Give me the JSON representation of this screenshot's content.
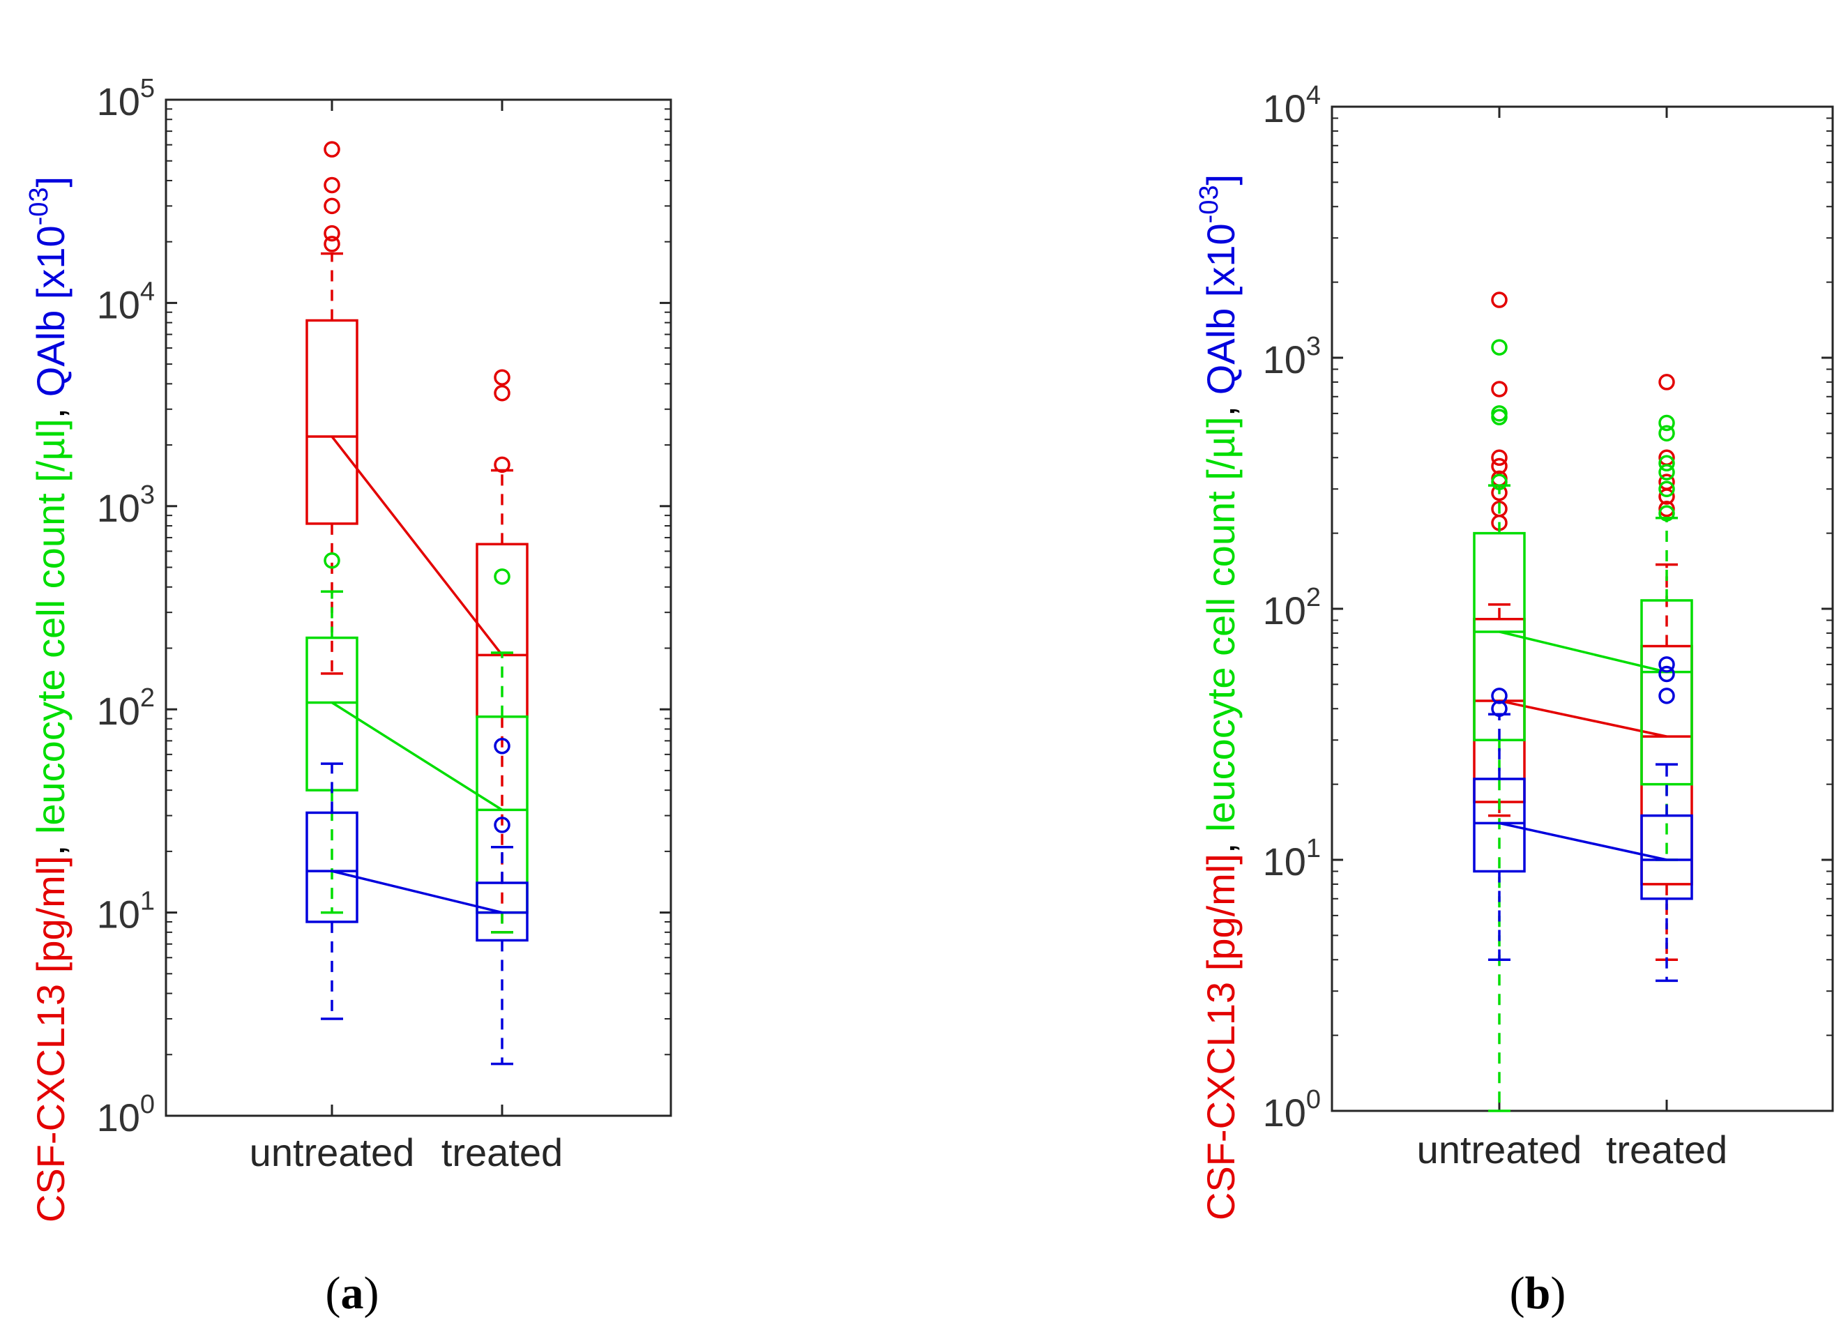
{
  "colors": {
    "cxcl13": "#e30000",
    "leucocyte": "#00dd00",
    "qalb": "#0000dd",
    "axis": "#262626"
  },
  "chart_data": [
    {
      "panel": "a",
      "type": "box",
      "yscale": "log",
      "ylim": [
        1,
        100000
      ],
      "yticks": [
        {
          "value": 1,
          "base": "10",
          "exp": "0"
        },
        {
          "value": 10,
          "base": "10",
          "exp": "1"
        },
        {
          "value": 100,
          "base": "10",
          "exp": "2"
        },
        {
          "value": 1000,
          "base": "10",
          "exp": "3"
        },
        {
          "value": 10000,
          "base": "10",
          "exp": "4"
        },
        {
          "value": 100000,
          "base": "10",
          "exp": "5"
        }
      ],
      "categories": [
        "untreated",
        "treated"
      ],
      "ylabel": {
        "cxcl13": "CSF-CXCL13 [pg/ml]",
        "sep1": ", ",
        "leucocyte": "leucocyte cell count [/µl]",
        "sep2": ", ",
        "qalb": "QAlb [x10",
        "qalb_exp": "-03",
        "qalb_end": "]"
      },
      "panel_label": {
        "open": "(",
        "letter": "a",
        "close": ")"
      },
      "series": [
        {
          "name": "CSF-CXCL13 [pg/ml]",
          "color_key": "cxcl13",
          "boxes": [
            {
              "q1": 820,
              "median": 2200,
              "q3": 8200,
              "whisker_low": 150,
              "whisker_high": 17500,
              "outliers": [
                19500,
                22000,
                30000,
                38000,
                57000
              ]
            },
            {
              "q1": 92,
              "median": 185,
              "q3": 650,
              "whisker_low": 8,
              "whisker_high": 1500,
              "outliers": [
                1600,
                3600,
                4300
              ]
            }
          ]
        },
        {
          "name": "leucocyte cell count [/µl]",
          "color_key": "leucocyte",
          "boxes": [
            {
              "q1": 40,
              "median": 108,
              "q3": 225,
              "whisker_low": 10,
              "whisker_high": 380,
              "outliers": [
                540
              ]
            },
            {
              "q1": 10,
              "median": 32,
              "q3": 92,
              "whisker_low": 8,
              "whisker_high": 190,
              "outliers": [
                450
              ]
            }
          ]
        },
        {
          "name": "QAlb [x10-03]",
          "color_key": "qalb",
          "boxes": [
            {
              "q1": 9,
              "median": 16,
              "q3": 31,
              "whisker_low": 3,
              "whisker_high": 54,
              "outliers": []
            },
            {
              "q1": 7.3,
              "median": 10,
              "q3": 14,
              "whisker_low": 1.8,
              "whisker_high": 21,
              "outliers": [
                27,
                66
              ]
            }
          ]
        }
      ]
    },
    {
      "panel": "b",
      "type": "box",
      "yscale": "log",
      "ylim": [
        1,
        10000
      ],
      "yticks": [
        {
          "value": 1,
          "base": "10",
          "exp": "0"
        },
        {
          "value": 10,
          "base": "10",
          "exp": "1"
        },
        {
          "value": 100,
          "base": "10",
          "exp": "2"
        },
        {
          "value": 1000,
          "base": "10",
          "exp": "3"
        },
        {
          "value": 10000,
          "base": "10",
          "exp": "4"
        }
      ],
      "categories": [
        "untreated",
        "treated"
      ],
      "ylabel": {
        "cxcl13": "CSF-CXCL13 [pg/ml]",
        "sep1": ", ",
        "leucocyte": "leucocyte cell count [/µl]",
        "sep2": ", ",
        "qalb": "QAlb [x10",
        "qalb_exp": "-03",
        "qalb_end": "]"
      },
      "panel_label": {
        "open": "(",
        "letter": "b",
        "close": ")"
      },
      "series": [
        {
          "name": "CSF-CXCL13 [pg/ml]",
          "color_key": "cxcl13",
          "boxes": [
            {
              "q1": 17,
              "median": 43,
              "q3": 91,
              "whisker_low": 15,
              "whisker_high": 104,
              "outliers": [
                220,
                250,
                290,
                330,
                370,
                400,
                750,
                1700
              ]
            },
            {
              "q1": 8,
              "median": 31,
              "q3": 71,
              "whisker_low": 4,
              "whisker_high": 150,
              "outliers": [
                250,
                280,
                320,
                400,
                800
              ]
            }
          ]
        },
        {
          "name": "leucocyte cell count [/µl]",
          "color_key": "leucocyte",
          "boxes": [
            {
              "q1": 30,
              "median": 81,
              "q3": 200,
              "whisker_low": 1,
              "whisker_high": 310,
              "outliers": [
                320,
                580,
                600,
                1100
              ]
            },
            {
              "q1": 20,
              "median": 56,
              "q3": 108,
              "whisker_low": 10,
              "whisker_high": 230,
              "outliers": [
                240,
                300,
                350,
                380,
                500,
                550
              ]
            }
          ]
        },
        {
          "name": "QAlb [x10-03]",
          "color_key": "qalb",
          "boxes": [
            {
              "q1": 9,
              "median": 14,
              "q3": 21,
              "whisker_low": 4,
              "whisker_high": 38,
              "outliers": [
                40,
                45
              ]
            },
            {
              "q1": 7,
              "median": 10,
              "q3": 15,
              "whisker_low": 3.3,
              "whisker_high": 24,
              "outliers": [
                45,
                55,
                60
              ]
            }
          ]
        }
      ]
    }
  ]
}
